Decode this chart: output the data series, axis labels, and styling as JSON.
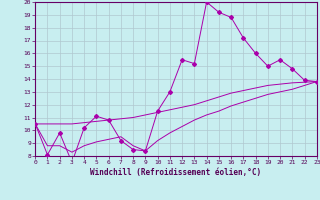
{
  "xlabel": "Windchill (Refroidissement éolien,°C)",
  "bg_color": "#c8eef0",
  "line_color": "#aa00aa",
  "grid_color": "#b0c8d0",
  "xmin": 0,
  "xmax": 23,
  "ymin": 8,
  "ymax": 20,
  "x": [
    0,
    1,
    2,
    3,
    4,
    5,
    6,
    7,
    8,
    9,
    10,
    11,
    12,
    13,
    14,
    15,
    16,
    17,
    18,
    19,
    20,
    21,
    22,
    23
  ],
  "y_main": [
    10.5,
    8.1,
    9.8,
    7.5,
    10.2,
    11.1,
    10.8,
    9.2,
    8.5,
    8.4,
    11.5,
    13.0,
    15.5,
    15.2,
    20.0,
    19.2,
    18.8,
    17.2,
    16.0,
    15.0,
    15.5,
    14.8,
    13.9,
    13.8
  ],
  "y_upper": [
    10.5,
    10.5,
    10.5,
    10.5,
    10.6,
    10.7,
    10.8,
    10.9,
    11.0,
    11.2,
    11.4,
    11.6,
    11.8,
    12.0,
    12.3,
    12.6,
    12.9,
    13.1,
    13.3,
    13.5,
    13.6,
    13.7,
    13.75,
    13.8
  ],
  "y_lower": [
    10.5,
    8.8,
    8.8,
    8.3,
    8.8,
    9.1,
    9.3,
    9.5,
    8.8,
    8.4,
    9.2,
    9.8,
    10.3,
    10.8,
    11.2,
    11.5,
    11.9,
    12.2,
    12.5,
    12.8,
    13.0,
    13.2,
    13.5,
    13.8
  ]
}
